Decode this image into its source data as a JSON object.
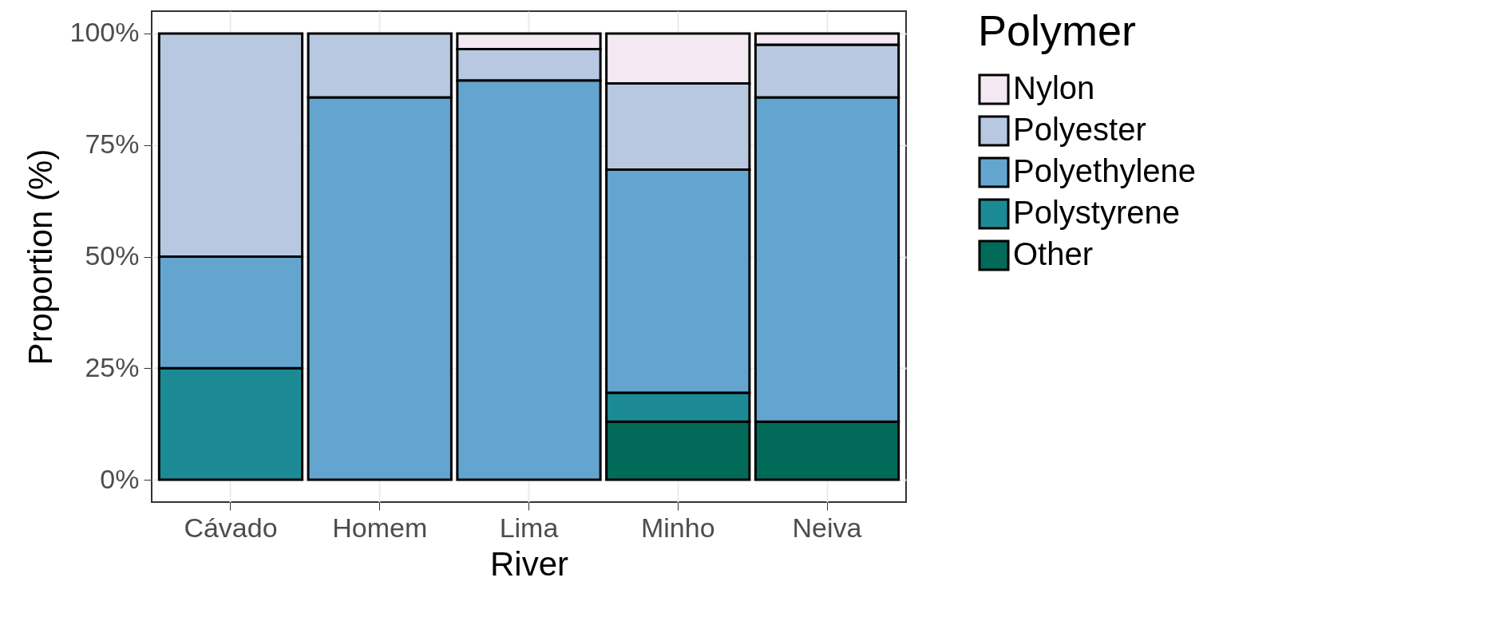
{
  "chart_data": {
    "type": "bar",
    "stacked": true,
    "xlabel": "River",
    "ylabel": "Proportion (%)",
    "legend_title": "Polymer",
    "categories": [
      "Cávado",
      "Homem",
      "Lima",
      "Minho",
      "Neiva"
    ],
    "series": [
      {
        "name": "Other",
        "color": "#016a59",
        "values": [
          0,
          0,
          0,
          13,
          13
        ]
      },
      {
        "name": "Polystyrene",
        "color": "#1c8a94",
        "values": [
          25,
          0,
          0,
          6.5,
          0
        ]
      },
      {
        "name": "Polyethylene",
        "color": "#64a5cf",
        "values": [
          25,
          85.7,
          89.5,
          50,
          72.7
        ]
      },
      {
        "name": "Polyester",
        "color": "#b8c8e0",
        "values": [
          50,
          14.3,
          7,
          19.3,
          11.8
        ]
      },
      {
        "name": "Nylon",
        "color": "#f4e9f3",
        "values": [
          0,
          0,
          3.5,
          11.2,
          2.5
        ]
      }
    ],
    "ylim": [
      -5,
      105
    ],
    "yticks": [
      {
        "value": 0,
        "label": "0%"
      },
      {
        "value": 25,
        "label": "25%"
      },
      {
        "value": 50,
        "label": "50%"
      },
      {
        "value": 75,
        "label": "75%"
      },
      {
        "value": 100,
        "label": "100%"
      }
    ],
    "grid": true,
    "legend": "right"
  }
}
